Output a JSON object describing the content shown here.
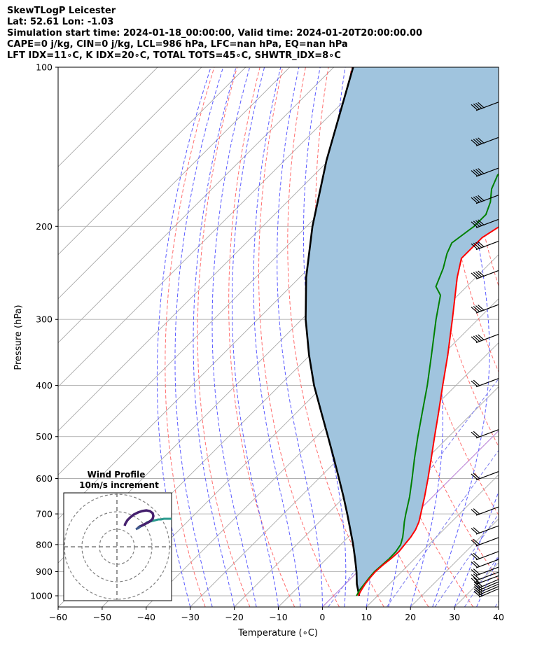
{
  "header": {
    "line1": "SkewTLogP Leicester",
    "line2": "Lat: 52.61   Lon: -1.03",
    "line3": "Simulation start time: 2024-01-18_00:00:00, Valid time: 2024-01-20T20:00:00.00",
    "line4": "CAPE=0 j/kg, CIN=0 j/kg, LCL=986 hPa, LFC=nan hPa, EQ=nan hPa",
    "line5": "LFT IDX=11∘C, K IDX=20∘C, TOTAL TOTS=45∘C, SHWTR_IDX=8∘C"
  },
  "chart_data": {
    "type": "line",
    "xlabel": "Temperature (∘C)",
    "ylabel": "Pressure (hPa)",
    "xlim": [
      -60,
      40
    ],
    "ylim": [
      1050,
      100
    ],
    "y_scale": "log",
    "skew": "45deg",
    "grid": true,
    "x_ticks": [
      "−60",
      "−50",
      "−40",
      "−30",
      "−20",
      "−10",
      "0",
      "10",
      "20",
      "30",
      "40"
    ],
    "x_tick_values": [
      -60,
      -50,
      -40,
      -30,
      -20,
      -10,
      0,
      10,
      20,
      30,
      40
    ],
    "y_ticks": [
      "1000",
      "900",
      "800",
      "700",
      "600",
      "500",
      "400",
      "300",
      "200",
      "100"
    ],
    "y_tick_values": [
      1000,
      900,
      800,
      700,
      600,
      500,
      400,
      300,
      200,
      100
    ],
    "colors": {
      "temperature": "#ff0000",
      "dewpoint": "#008000",
      "parcel": "#000000",
      "cape_fill": "#a0c4de",
      "dry_adiabat": "#ff6e6e",
      "moist_adiabat": "#5a5aff",
      "mixing_ratio": "#7a7aee",
      "isotherm": "#a9a9a9",
      "isotherm_zero": "#b070d0"
    },
    "series": [
      {
        "key": "temperature",
        "points": [
          [
            1000,
            5.6
          ],
          [
            975,
            5.0
          ],
          [
            950,
            4.5
          ],
          [
            925,
            4.2
          ],
          [
            900,
            4.0
          ],
          [
            875,
            4.2
          ],
          [
            850,
            4.6
          ],
          [
            825,
            4.8
          ],
          [
            800,
            4.5
          ],
          [
            775,
            4.2
          ],
          [
            750,
            3.6
          ],
          [
            725,
            2.6
          ],
          [
            700,
            1.2
          ],
          [
            650,
            -1.8
          ],
          [
            600,
            -5.2
          ],
          [
            550,
            -9.0
          ],
          [
            500,
            -13.2
          ],
          [
            450,
            -17.8
          ],
          [
            400,
            -23.0
          ],
          [
            350,
            -28.8
          ],
          [
            300,
            -35.8
          ],
          [
            250,
            -44.2
          ],
          [
            230,
            -47.6
          ],
          [
            210,
            -47.6
          ],
          [
            200,
            -46.2
          ],
          [
            190,
            -45.0
          ],
          [
            170,
            -43.6
          ],
          [
            150,
            -43.2
          ],
          [
            130,
            -43.8
          ],
          [
            115,
            -44.8
          ],
          [
            100,
            -46.5
          ]
        ]
      },
      {
        "key": "dewpoint",
        "points": [
          [
            1000,
            5.2
          ],
          [
            975,
            4.6
          ],
          [
            950,
            4.3
          ],
          [
            925,
            4.0
          ],
          [
            900,
            3.8
          ],
          [
            875,
            4.0
          ],
          [
            850,
            4.2
          ],
          [
            825,
            4.1
          ],
          [
            800,
            3.6
          ],
          [
            775,
            2.4
          ],
          [
            750,
            0.9
          ],
          [
            725,
            -0.7
          ],
          [
            700,
            -2.2
          ],
          [
            650,
            -5.2
          ],
          [
            600,
            -8.8
          ],
          [
            550,
            -12.8
          ],
          [
            500,
            -17.0
          ],
          [
            450,
            -21.5
          ],
          [
            400,
            -26.5
          ],
          [
            350,
            -32.5
          ],
          [
            300,
            -39.5
          ],
          [
            270,
            -44.0
          ],
          [
            260,
            -47.0
          ],
          [
            240,
            -49.5
          ],
          [
            225,
            -52.0
          ],
          [
            215,
            -53.3
          ],
          [
            200,
            -52.0
          ],
          [
            190,
            -52.0
          ],
          [
            180,
            -53.8
          ],
          [
            170,
            -56.5
          ],
          [
            160,
            -58.3
          ],
          [
            150,
            -58.2
          ],
          [
            140,
            -62.0
          ],
          [
            125,
            -66.0
          ],
          [
            110,
            -69.0
          ],
          [
            100,
            -71.0
          ]
        ]
      },
      {
        "key": "parcel",
        "points": [
          [
            1000,
            5.8
          ],
          [
            950,
            2.6
          ],
          [
            900,
            -0.3
          ],
          [
            850,
            -3.6
          ],
          [
            800,
            -7.2
          ],
          [
            750,
            -11.2
          ],
          [
            700,
            -15.5
          ],
          [
            650,
            -20.2
          ],
          [
            600,
            -25.4
          ],
          [
            550,
            -31.1
          ],
          [
            500,
            -37.4
          ],
          [
            450,
            -44.4
          ],
          [
            400,
            -52.2
          ],
          [
            350,
            -60.3
          ],
          [
            300,
            -69.1
          ],
          [
            250,
            -78.5
          ],
          [
            200,
            -88.7
          ],
          [
            150,
            -100.5
          ],
          [
            100,
            -115.6
          ]
        ]
      }
    ],
    "wind_barbs_hPa": [
      1000,
      990,
      980,
      970,
      960,
      945,
      930,
      910,
      880,
      850,
      800,
      760,
      700,
      600,
      500,
      400,
      330,
      290,
      250,
      220,
      200,
      180,
      160,
      140,
      120
    ],
    "inset": {
      "title": "Wind Profile",
      "subtitle": "10m/s increment"
    }
  }
}
